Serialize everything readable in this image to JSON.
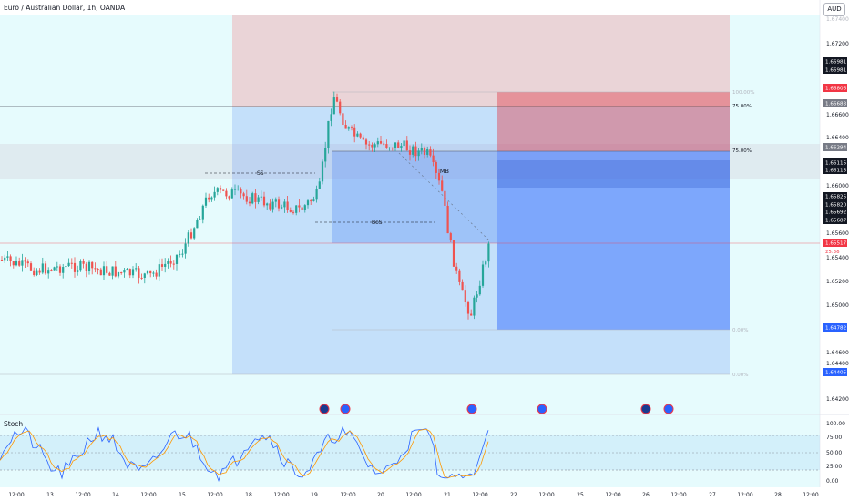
{
  "header": {
    "title": "Euro / Australian Dollar, 1h, OANDA",
    "currency": "AUD"
  },
  "colors": {
    "up": "#26a69a",
    "down": "#ef5350",
    "zone_blue": "#2962ff",
    "zone_red": "#f23645",
    "bg_tint": "#e6fbfd"
  },
  "chart_data": {
    "type": "candlestick",
    "symbol": "Euro / Australian Dollar",
    "timeframe": "1h",
    "source": "OANDA",
    "ylim": [
      1.6405,
      1.6755
    ],
    "price_ticks": [
      "1.67400",
      "1.67200",
      "1.66600",
      "1.66400",
      "1.66000",
      "1.65600",
      "1.65400",
      "1.65200",
      "1.65000",
      "1.64600",
      "1.64400",
      "1.64200"
    ],
    "x_ticks": [
      "12:00",
      "13",
      "12:00",
      "14",
      "12:00",
      "15",
      "12:00",
      "18",
      "12:00",
      "19",
      "12:00",
      "20",
      "12:00",
      "21",
      "12:00",
      "22",
      "12:00",
      "25",
      "12:00",
      "26",
      "12:00",
      "27",
      "12:00",
      "28",
      "12:00"
    ],
    "price_badges": [
      {
        "label": "1.66981",
        "color": "#131722"
      },
      {
        "label": "1.66981",
        "color": "#131722"
      },
      {
        "label": "1.66806",
        "color": "#f23645"
      },
      {
        "label": "1.66683",
        "color": "#787b86"
      },
      {
        "label": "1.66294",
        "color": "#787b86"
      },
      {
        "label": "1.66115",
        "color": "#131722"
      },
      {
        "label": "1.66115",
        "color": "#131722"
      },
      {
        "label": "1.65825",
        "color": "#131722"
      },
      {
        "label": "1.65820",
        "color": "#131722"
      },
      {
        "label": "1.65692",
        "color": "#131722"
      },
      {
        "label": "1.65687",
        "color": "#131722"
      },
      {
        "label": "1.65517",
        "color": "#f23645"
      },
      {
        "label": "1.64782",
        "color": "#2962ff"
      },
      {
        "label": "1.64405",
        "color": "#2962ff"
      }
    ],
    "countdown": "25:36",
    "fib_levels": [
      "100.00%",
      "75.00%",
      "75.00%",
      "0.00%",
      "0.00%"
    ],
    "annotations": [
      "SS",
      "IMB",
      "BoS"
    ],
    "indicator": {
      "name": "Stoch",
      "ticks": [
        "100.00",
        "75.00",
        "50.00",
        "25.00",
        "0.00"
      ]
    },
    "grid": false,
    "legend": "top-left"
  }
}
